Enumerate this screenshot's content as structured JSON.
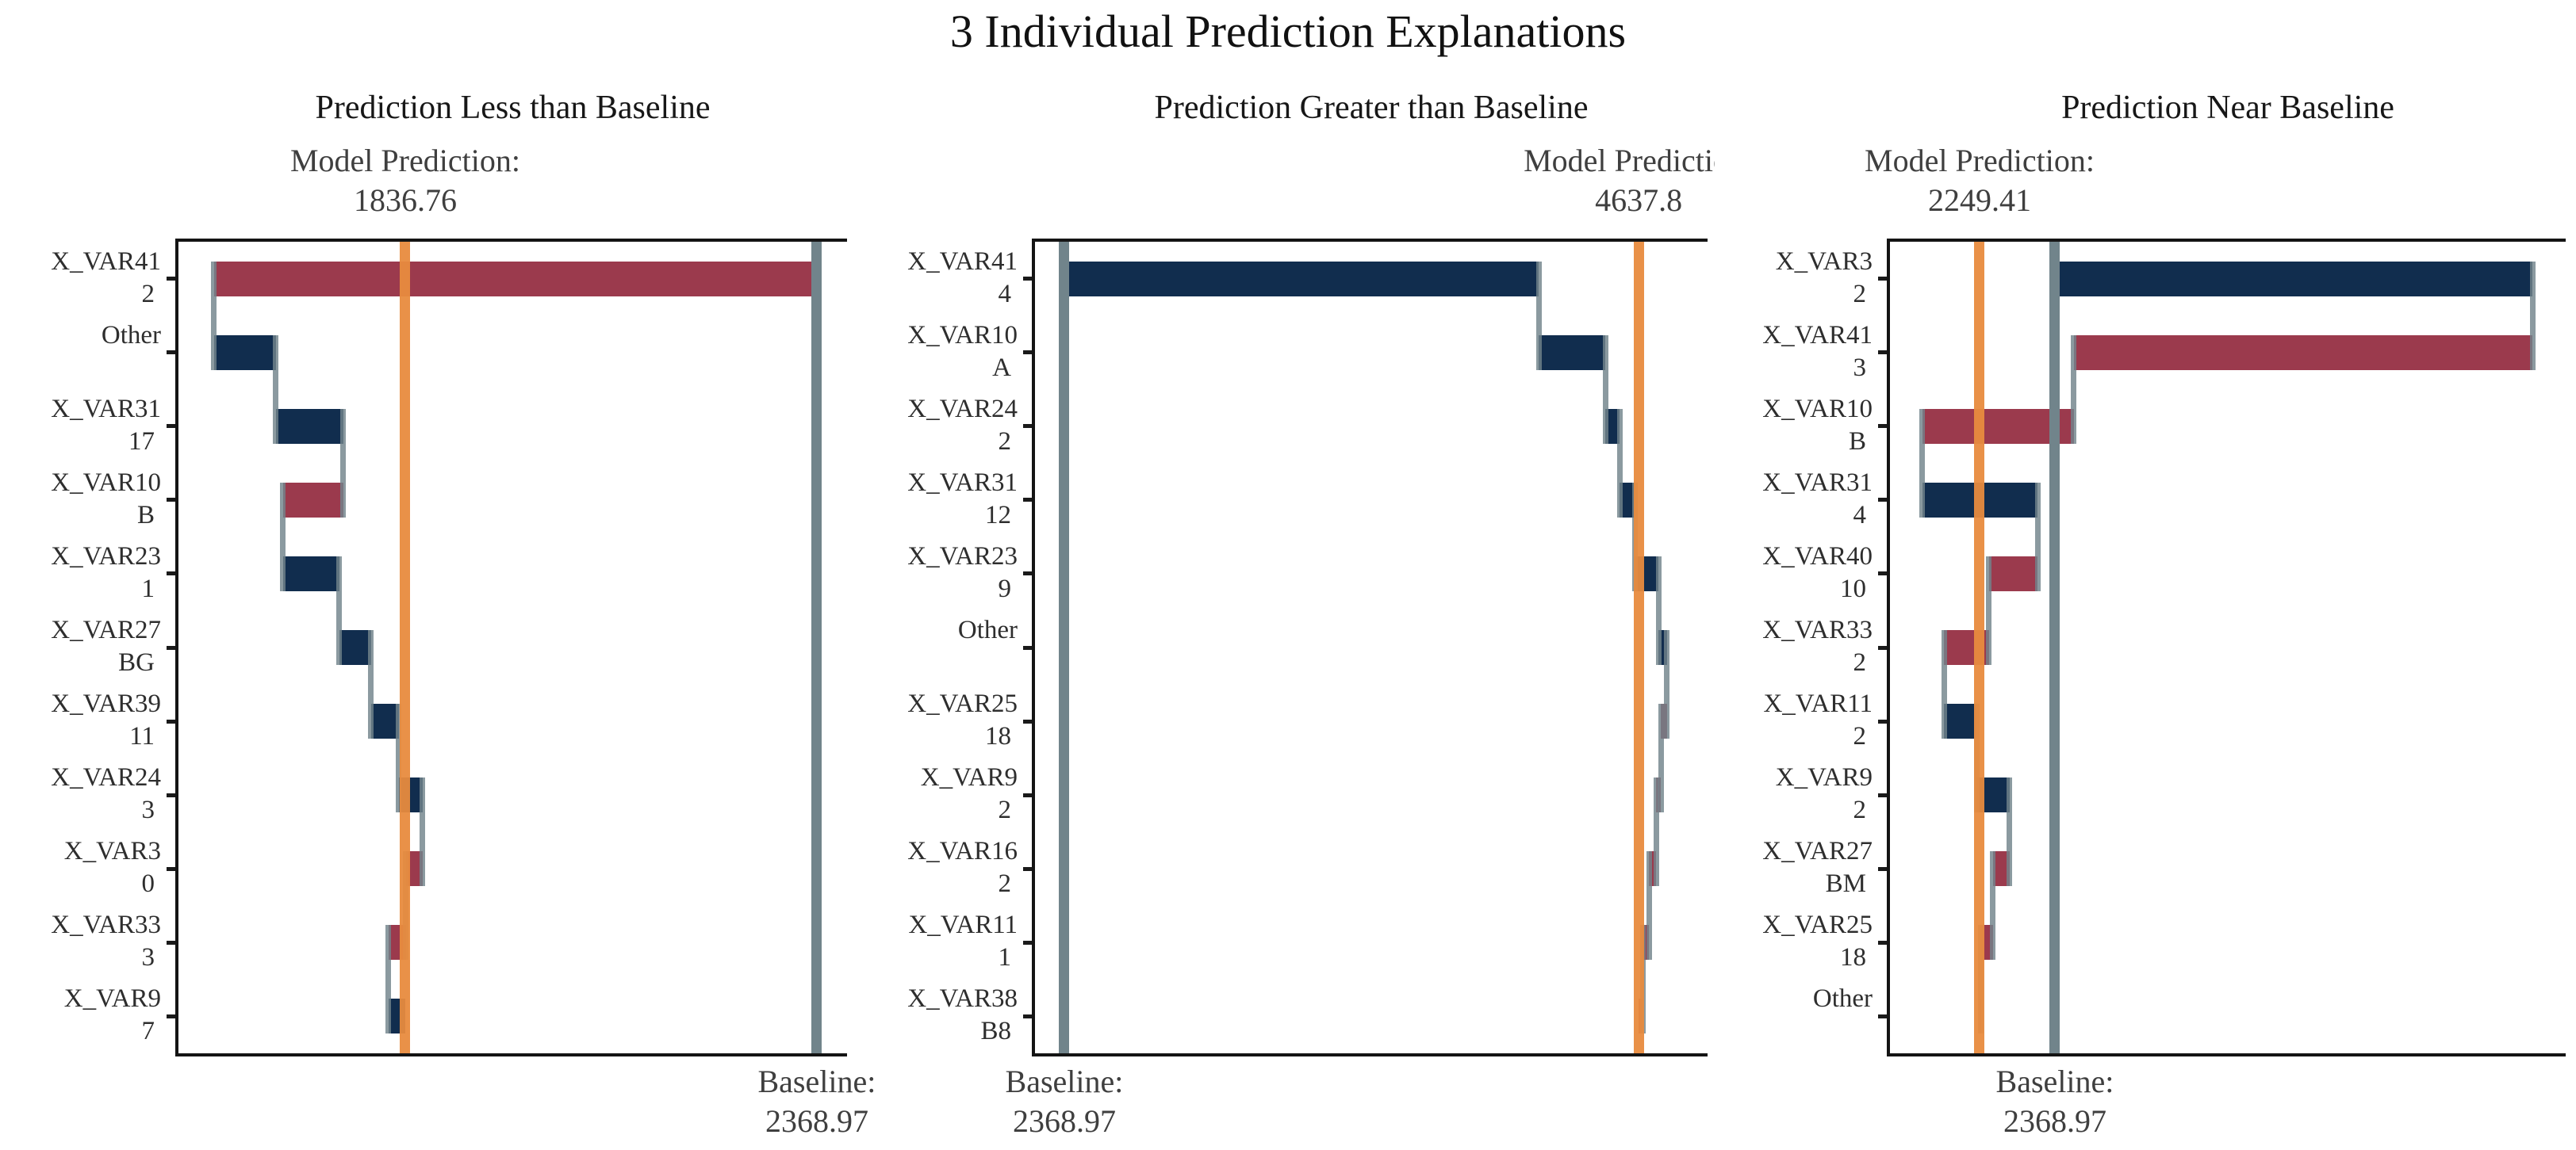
{
  "figure_title": "3 Individual Prediction Explanations",
  "colors": {
    "positive_bar": "#112d4e",
    "negative_bar": "#9b3a4d",
    "prediction_line": "#e88b3e",
    "baseline_line": "#71848b",
    "connector": "#7b8d94",
    "frame": "#141414",
    "title_text": "#111111",
    "header_text": "#3f3f3f",
    "label_text": "#2e2e2e"
  },
  "chart_data": [
    {
      "type": "waterfall",
      "title": "Prediction Less than Baseline",
      "model_prediction_label": "Model Prediction:",
      "model_prediction": 1836.76,
      "model_prediction_display": "1836.76",
      "baseline_label": "Baseline:",
      "baseline": 2368.97,
      "baseline_display": "2368.97",
      "xlim": [
        1543.5,
        2408.0
      ],
      "grid": false,
      "legend": "none",
      "rows": [
        {
          "var": "X_VAR41",
          "value": "2",
          "start": 2368.97,
          "end": 1589.6
        },
        {
          "var": "Other",
          "value": "",
          "start": 1589.6,
          "end": 1669.6
        },
        {
          "var": "X_VAR31",
          "value": "17",
          "start": 1669.6,
          "end": 1756.8
        },
        {
          "var": "X_VAR10",
          "value": "B",
          "start": 1756.8,
          "end": 1678.8
        },
        {
          "var": "X_VAR23",
          "value": "1",
          "start": 1678.8,
          "end": 1751.6
        },
        {
          "var": "X_VAR27",
          "value": "BG",
          "start": 1751.6,
          "end": 1792.6
        },
        {
          "var": "X_VAR39",
          "value": "11",
          "start": 1792.6,
          "end": 1828.5
        },
        {
          "var": "X_VAR24",
          "value": "3",
          "start": 1828.5,
          "end": 1859.3
        },
        {
          "var": "X_VAR3",
          "value": "0",
          "start": 1859.3,
          "end": 1837.7
        },
        {
          "var": "X_VAR33",
          "value": "3",
          "start": 1837.7,
          "end": 1815.2
        },
        {
          "var": "X_VAR9",
          "value": "7",
          "start": 1815.2,
          "end": 1836.76
        }
      ]
    },
    {
      "type": "waterfall",
      "title": "Prediction Greater than Baseline",
      "model_prediction_label": "Model Prediction:",
      "model_prediction": 4637.8,
      "model_prediction_display": "4637.8",
      "baseline_label": "Baseline:",
      "baseline": 2368.97,
      "baseline_display": "2368.97",
      "xlim": [
        2253.2,
        4910.1
      ],
      "grid": false,
      "legend": "none",
      "rows": [
        {
          "var": "X_VAR41",
          "value": "4",
          "start": 2368.97,
          "end": 4243.4
        },
        {
          "var": "X_VAR10",
          "value": "A",
          "start": 4243.4,
          "end": 4506.2
        },
        {
          "var": "X_VAR24",
          "value": "2",
          "start": 4506.2,
          "end": 4562.5
        },
        {
          "var": "X_VAR31",
          "value": "12",
          "start": 4562.5,
          "end": 4622.0
        },
        {
          "var": "X_VAR23",
          "value": "9",
          "start": 4622.0,
          "end": 4715.9
        },
        {
          "var": "Other",
          "value": "",
          "start": 4715.9,
          "end": 4750.3
        },
        {
          "var": "X_VAR25",
          "value": "18",
          "start": 4750.3,
          "end": 4725.3
        },
        {
          "var": "X_VAR9",
          "value": "2",
          "start": 4725.3,
          "end": 4706.5
        },
        {
          "var": "X_VAR16",
          "value": "2",
          "start": 4706.5,
          "end": 4678.3
        },
        {
          "var": "X_VAR11",
          "value": "1",
          "start": 4678.3,
          "end": 4653.3
        },
        {
          "var": "X_VAR38",
          "value": "B8",
          "start": 4653.3,
          "end": 4637.8
        }
      ]
    },
    {
      "type": "waterfall",
      "title": "Prediction Near Baseline",
      "model_prediction_label": "Model Prediction:",
      "model_prediction": 2249.41,
      "model_prediction_display": "2249.41",
      "baseline_label": "Baseline:",
      "baseline": 2368.97,
      "baseline_display": "2368.97",
      "xlim": [
        2107.2,
        3179.5
      ],
      "grid": false,
      "legend": "none",
      "rows": [
        {
          "var": "X_VAR3",
          "value": "2",
          "start": 2368.97,
          "end": 3127.2
        },
        {
          "var": "X_VAR41",
          "value": "3",
          "start": 3127.2,
          "end": 2399.1
        },
        {
          "var": "X_VAR10",
          "value": "B",
          "start": 2399.1,
          "end": 2158.6
        },
        {
          "var": "X_VAR31",
          "value": "4",
          "start": 2158.6,
          "end": 2341.6
        },
        {
          "var": "X_VAR40",
          "value": "10",
          "start": 2341.6,
          "end": 2264.4
        },
        {
          "var": "X_VAR33",
          "value": "2",
          "start": 2264.4,
          "end": 2193.4
        },
        {
          "var": "X_VAR11",
          "value": "2",
          "start": 2193.4,
          "end": 2244.4
        },
        {
          "var": "X_VAR9",
          "value": "2",
          "start": 2244.4,
          "end": 2296.7
        },
        {
          "var": "X_VAR27",
          "value": "BM",
          "start": 2296.7,
          "end": 2270.6
        },
        {
          "var": "X_VAR25",
          "value": "18",
          "start": 2270.6,
          "end": 2251.3
        },
        {
          "var": "Other",
          "value": "",
          "start": 2251.3,
          "end": 2249.41
        }
      ]
    }
  ]
}
